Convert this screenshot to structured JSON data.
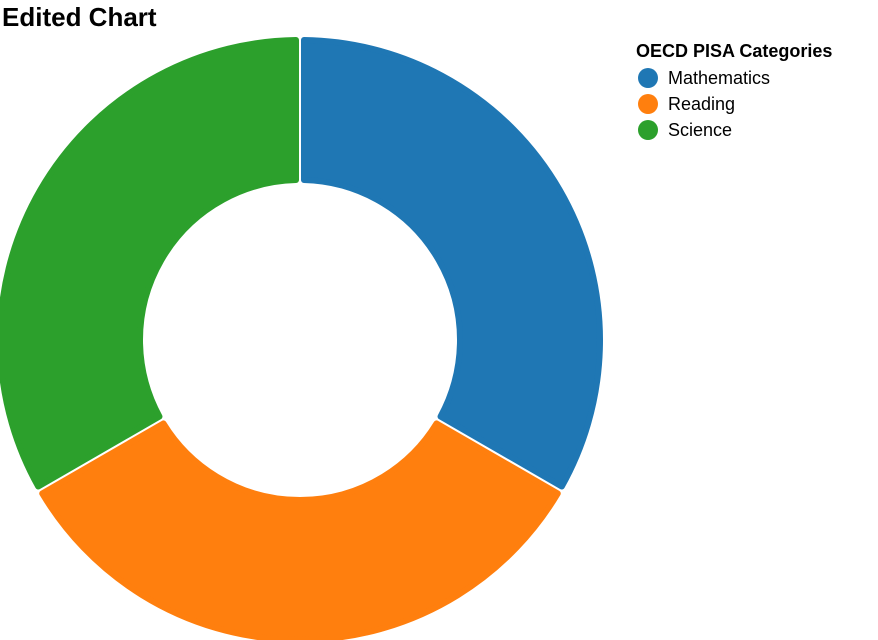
{
  "chart_data": {
    "type": "pie",
    "variant": "donut",
    "title": "Edited Chart",
    "legend": {
      "title": "OECD PISA Categories",
      "position": "top-right"
    },
    "categories": [
      "Mathematics",
      "Reading",
      "Science"
    ],
    "values": [
      1,
      1,
      1
    ],
    "colors": [
      "#1f77b4",
      "#ff7f0e",
      "#2ca02c"
    ]
  }
}
